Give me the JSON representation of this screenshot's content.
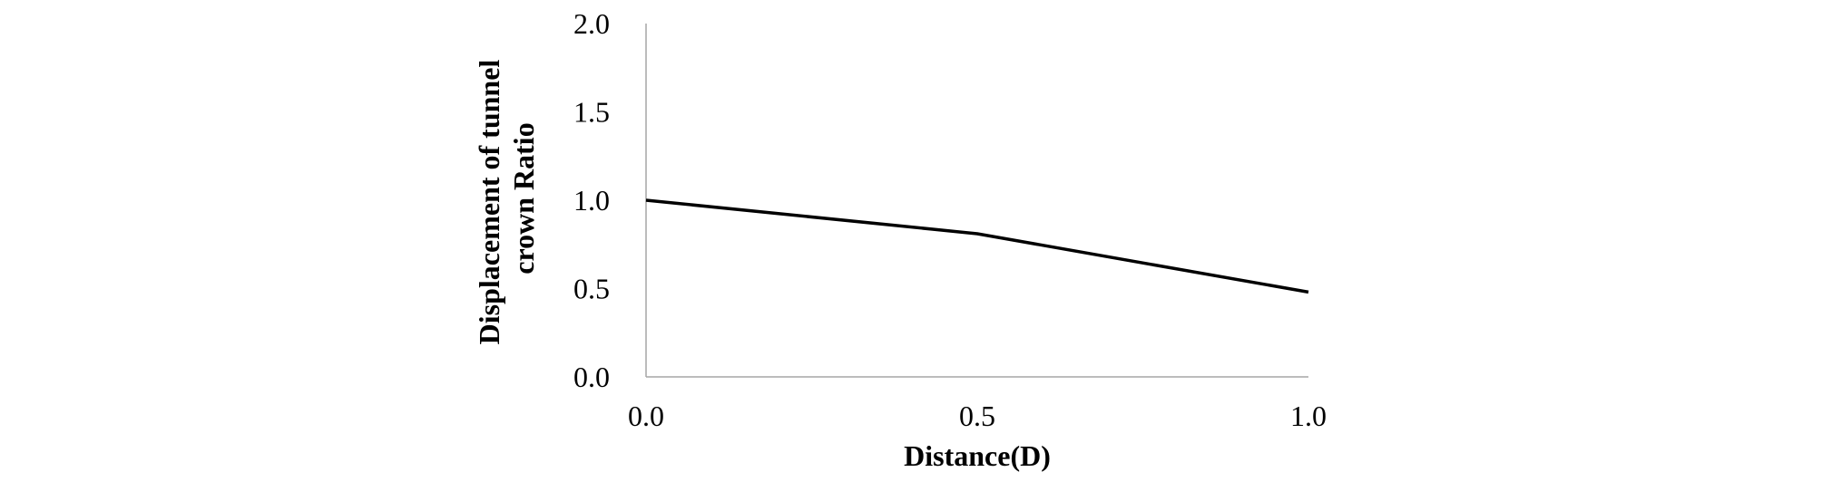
{
  "chart_data": {
    "type": "line",
    "title": "",
    "xlabel": "Distance(D)",
    "ylabel_lines": [
      "Displacement of tunnel",
      "crown Ratio"
    ],
    "xlim": [
      0,
      1
    ],
    "ylim": [
      0,
      2
    ],
    "x_ticks": [
      "0.0",
      "0.5",
      "1.0"
    ],
    "y_ticks": [
      "0.0",
      "0.5",
      "1.0",
      "1.5",
      "2.0"
    ],
    "grid": false,
    "legend": "none",
    "series": [
      {
        "color": "#000000",
        "x": [
          0.0,
          0.5,
          1.0
        ],
        "y": [
          1.0,
          0.81,
          0.48
        ]
      }
    ]
  }
}
